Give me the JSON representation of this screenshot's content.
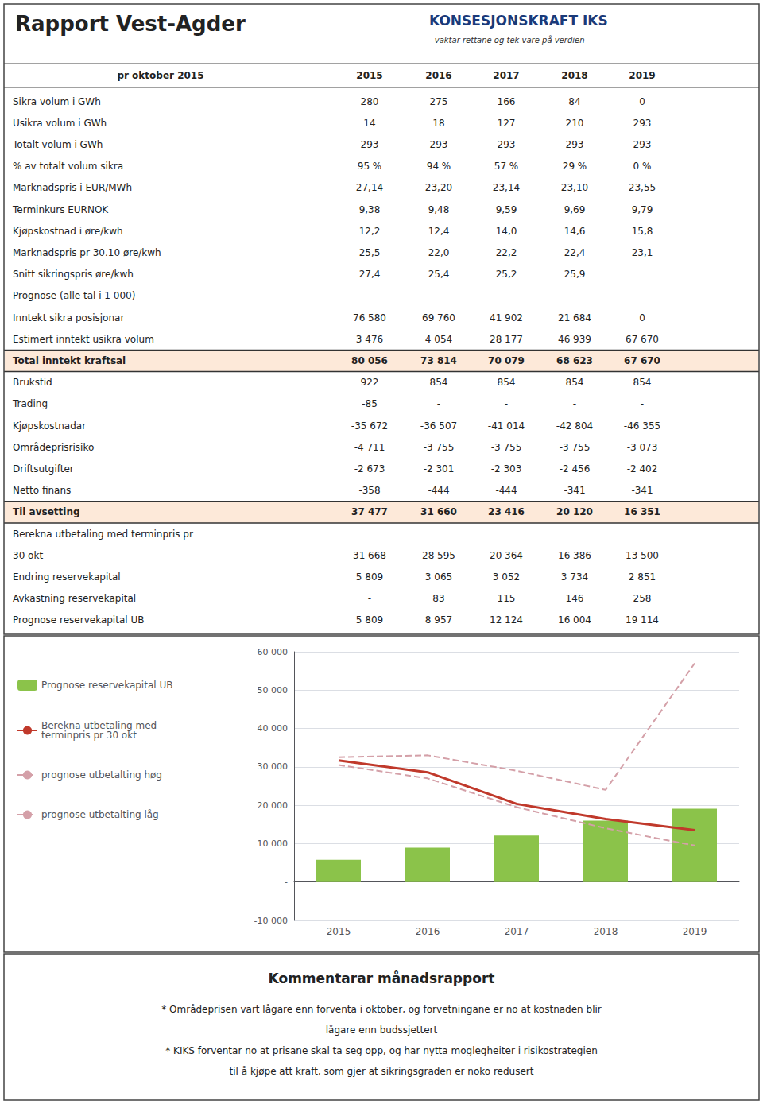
{
  "chart_data": {
    "type": "bar",
    "title": "Rapport Vest-Agder",
    "annotations": [
      "KONSESJONSKRAFT IKS",
      "- vaktar rettane og tek vare på verdien"
    ],
    "table": {
      "columns": [
        "pr oktober 2015",
        "2015",
        "2016",
        "2017",
        "2018",
        "2019"
      ],
      "rows": [
        {
          "label": "Sikra volum i GWh",
          "values": [
            "280",
            "275",
            "166",
            "84",
            "0"
          ]
        },
        {
          "label": "Usikra volum i GWh",
          "values": [
            "14",
            "18",
            "127",
            "210",
            "293"
          ]
        },
        {
          "label": "Totalt volum i GWh",
          "values": [
            "293",
            "293",
            "293",
            "293",
            "293"
          ]
        },
        {
          "label": "% av totalt volum sikra",
          "values": [
            "95 %",
            "94 %",
            "57 %",
            "29 %",
            "0 %"
          ]
        },
        {
          "label": "Marknadspris i EUR/MWh",
          "values": [
            "27,14",
            "23,20",
            "23,14",
            "23,10",
            "23,55"
          ]
        },
        {
          "label": "Terminkurs EURNOK",
          "values": [
            "9,38",
            "9,48",
            "9,59",
            "9,69",
            "9,79"
          ]
        },
        {
          "label": "Kjøpskostnad i øre/kwh",
          "values": [
            "12,2",
            "12,4",
            "14,0",
            "14,6",
            "15,8"
          ]
        },
        {
          "label": "Marknadspris pr 30.10 øre/kwh",
          "values": [
            "25,5",
            "22,0",
            "22,2",
            "22,4",
            "23,1"
          ]
        },
        {
          "label": "Snitt sikringspris øre/kwh",
          "values": [
            "27,4",
            "25,4",
            "25,2",
            "25,9",
            null
          ]
        },
        {
          "label": "Prognose (alle tal i 1 000)",
          "values": []
        },
        {
          "label": "Inntekt sikra posisjonar",
          "values": [
            "76 580",
            "69 760",
            "41 902",
            "21 684",
            "0"
          ]
        },
        {
          "label": "Estimert inntekt usikra volum",
          "values": [
            "3 476",
            "4 054",
            "28 177",
            "46 939",
            "67 670"
          ]
        },
        {
          "label": "Total inntekt kraftsal",
          "values": [
            "80 056",
            "73 814",
            "70 079",
            "68 623",
            "67 670"
          ],
          "color": "#fde9d9"
        },
        {
          "label": "Brukstid",
          "values": [
            "922",
            "854",
            "854",
            "854",
            "854"
          ]
        },
        {
          "label": "Trading",
          "values": [
            "-85",
            "-",
            "-",
            "-",
            "-"
          ]
        },
        {
          "label": "Kjøpskostnadar",
          "values": [
            "-35 672",
            "-36 507",
            "-41 014",
            "-42 804",
            "-46 355"
          ]
        },
        {
          "label": "Områdeprisrisiko",
          "values": [
            "-4 711",
            "-3 755",
            "-3 755",
            "-3 755",
            "-3 073"
          ]
        },
        {
          "label": "Driftsutgifter",
          "values": [
            "-2 673",
            "-2 301",
            "-2 303",
            "-2 456",
            "-2 402"
          ]
        },
        {
          "label": "Netto finans",
          "values": [
            "-358",
            "-444",
            "-444",
            "-341",
            "-341"
          ]
        },
        {
          "label": "Til avsetting",
          "values": [
            "37 477",
            "31 660",
            "23 416",
            "20 120",
            "16 351"
          ],
          "color": "#fde9d9"
        },
        {
          "label": "Berekna utbetaling med terminpris pr",
          "values": []
        },
        {
          "label": "30 okt",
          "values": [
            "31 668",
            "28 595",
            "20 364",
            "16 386",
            "13 500"
          ]
        },
        {
          "label": "Endring reservekapital",
          "values": [
            "5 809",
            "3 065",
            "3 052",
            "3 734",
            "2 851"
          ]
        },
        {
          "label": "Avkastning reservekapital",
          "values": [
            "-",
            "83",
            "115",
            "146",
            "258"
          ]
        },
        {
          "label": "Prognose reservekapital UB",
          "values": [
            "5 809",
            "8 957",
            "12 124",
            "16 004",
            "19 114"
          ]
        }
      ]
    },
    "categories": [
      "2015",
      "2016",
      "2017",
      "2018",
      "2019"
    ],
    "series": [
      {
        "name": "Prognose reservekapital UB",
        "type": "bar",
        "color": "#8bc34a",
        "values": [
          5809,
          8957,
          12124,
          16004,
          19114
        ]
      },
      {
        "name": "Berekna utbetaling med\nterminpris pr 30 okt",
        "type": "line",
        "color": "#c0392b",
        "line_style": "solid",
        "values": [
          31668,
          28595,
          20364,
          16386,
          13500
        ]
      },
      {
        "name": "prognose utbetalting høg",
        "type": "line",
        "color": "#d4a0a8",
        "line_style": "dashed",
        "values": [
          32500,
          33000,
          29000,
          24000,
          57000
        ]
      },
      {
        "name": "prognose utbetalting låg",
        "type": "line",
        "color": "#d4a0a8",
        "line_style": "dashed",
        "values": [
          30500,
          27000,
          19500,
          14000,
          9500
        ]
      }
    ],
    "ylim": [
      -10000,
      60000
    ],
    "yticks": [
      {
        "value": -10000,
        "label": "-10 000"
      },
      {
        "value": 0,
        "label": "-"
      },
      {
        "value": 10000,
        "label": "10 000"
      },
      {
        "value": 20000,
        "label": "20 000"
      },
      {
        "value": 30000,
        "label": "30 000"
      },
      {
        "value": 40000,
        "label": "40 000"
      },
      {
        "value": 50000,
        "label": "50 000"
      },
      {
        "value": 60000,
        "label": "60 000"
      }
    ],
    "grid": true,
    "notes": {
      "title": "Kommentarar månadsrapport",
      "lines": [
        "* Områdeprisen vart lågare enn forventa i oktober, og forvetningane er no at kostnaden blir",
        "lågare enn budssjettert",
        "* KIKS forventar no at prisane skal ta seg opp, og har nytta moglegheiter i risikostrategien",
        "til å kjøpe att kraft, som gjer at sikringsgraden er noko redusert"
      ]
    }
  }
}
